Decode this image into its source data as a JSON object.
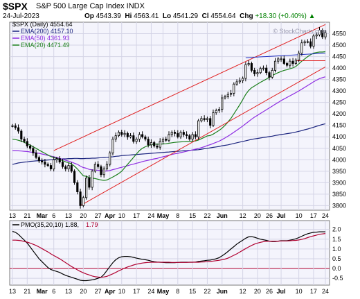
{
  "header": {
    "symbol": "$SPX",
    "description": "S&P 500 Large Cap Index  INDX",
    "date": "24-Jul-2023",
    "open_label": "Op",
    "open": "4543.39",
    "high_label": "Hi",
    "high": "4563.41",
    "low_label": "Lo",
    "low": "4541.29",
    "close_label": "Cl",
    "close": "4554.64",
    "chg_label": "Chg",
    "chg": "+18.30 (+0.40%)",
    "chg_arrow": "▲"
  },
  "watermark": "© StockCharts.com",
  "legend": [
    {
      "text": "$SPX (Daily) 4554.64",
      "color": "#000000"
    },
    {
      "text": "EMA(200) 4157.10",
      "color": "#1a237e"
    },
    {
      "text": "EMA(50) 4361.93",
      "color": "#8e2de2"
    },
    {
      "text": "EMA(20) 4471.49",
      "color": "#1b7f1b"
    }
  ],
  "pmo_legend": {
    "name": "PMO(35,20,10)",
    "v1": "1.88",
    "v2": "1.79",
    "color1": "#000000",
    "color2": "#b00030"
  },
  "chart_data": [
    {
      "type": "candlestick",
      "title": "$SPX (Daily)",
      "y_axis_side": "right",
      "ylim": [
        3780,
        4600
      ],
      "yticks": [
        3800,
        3850,
        3900,
        3950,
        4000,
        4050,
        4100,
        4150,
        4200,
        4250,
        4300,
        4350,
        4400,
        4450,
        4500,
        4550
      ],
      "x_ticks": [
        "13",
        "21",
        "Mar",
        "6",
        "13",
        "20",
        "27",
        "Apr",
        "10",
        "17",
        "24",
        "May",
        "8",
        "15",
        "22",
        "Jun",
        "12",
        "20",
        "26",
        "Jul",
        "10",
        "17",
        "24"
      ],
      "x_tick_idx": [
        0,
        5,
        10,
        14,
        19,
        24,
        29,
        33,
        37,
        42,
        47,
        51,
        56,
        61,
        66,
        71,
        78,
        83,
        87,
        91,
        97,
        102,
        106
      ],
      "bold_ticks": [
        "Mar",
        "Apr",
        "May",
        "Jun",
        "Jul"
      ],
      "close": [
        4148,
        4140,
        4125,
        4090,
        4080,
        4060,
        4050,
        4030,
        4010,
        3995,
        3990,
        3980,
        3975,
        3960,
        4000,
        4005,
        3990,
        3970,
        3960,
        3975,
        3950,
        3900,
        3860,
        3800,
        3835,
        3920,
        3880,
        3950,
        3980,
        3970,
        3935,
        3960,
        3980,
        4030,
        4090,
        4105,
        4120,
        4110,
        4115,
        4100,
        4105,
        4080,
        4090,
        4110,
        4100,
        4090,
        4065,
        4075,
        4060,
        4055,
        4080,
        4090,
        4085,
        4110,
        4120,
        4115,
        4100,
        4120,
        4110,
        4105,
        4090,
        4110,
        4100,
        4170,
        4180,
        4175,
        4180,
        4150,
        4205,
        4215,
        4220,
        4270,
        4275,
        4285,
        4290,
        4330,
        4340,
        4345,
        4355,
        4415,
        4420,
        4390,
        4375,
        4380,
        4398,
        4400,
        4380,
        4360,
        4390,
        4430,
        4440,
        4440,
        4420,
        4412,
        4430,
        4420,
        4435,
        4465,
        4510,
        4515,
        4515,
        4495,
        4540,
        4545,
        4565,
        4536,
        4555
      ],
      "series": [
        {
          "name": "EMA(200)",
          "color": "#1a237e",
          "values": [
            3980,
            3983,
            3986,
            3988,
            3990,
            3991,
            3993,
            3994,
            3995,
            3996,
            3997,
            3998,
            3999,
            4000,
            4001,
            4002,
            4003,
            4004,
            4004,
            4005,
            4005,
            4006,
            4006,
            4005,
            4005,
            4006,
            4006,
            4007,
            4007,
            4008,
            4009,
            4010,
            4011,
            4012,
            4013,
            4015,
            4016,
            4018,
            4019,
            4020,
            4021,
            4022,
            4023,
            4024,
            4025,
            4026,
            4027,
            4028,
            4029,
            4030,
            4031,
            4032,
            4033,
            4034,
            4035,
            4036,
            4037,
            4038,
            4039,
            4040,
            4041,
            4042,
            4043,
            4044,
            4046,
            4048,
            4050,
            4052,
            4054,
            4056,
            4058,
            4061,
            4063,
            4065,
            4068,
            4071,
            4074,
            4077,
            4080,
            4083,
            4086,
            4089,
            4091,
            4093,
            4095,
            4097,
            4099,
            4101,
            4103,
            4106,
            4108,
            4110,
            4112,
            4114,
            4116,
            4118,
            4121,
            4124,
            4127,
            4131,
            4134,
            4138,
            4142,
            4146,
            4150,
            4154,
            4157.1
          ]
        },
        {
          "name": "EMA(50)",
          "color": "#8e2de2",
          "values": [
            4040,
            4040,
            4039,
            4038,
            4037,
            4036,
            4034,
            4032,
            4030,
            4028,
            4025,
            4022,
            4019,
            4016,
            4013,
            4010,
            4006,
            4002,
            3998,
            3994,
            3990,
            3985,
            3980,
            3972,
            3966,
            3963,
            3958,
            3956,
            3955,
            3954,
            3952,
            3951,
            3951,
            3953,
            3957,
            3960,
            3964,
            3967,
            3971,
            3974,
            3978,
            3981,
            3985,
            3988,
            3992,
            3995,
            3998,
            4001,
            4004,
            4006,
            4010,
            4013,
            4016,
            4020,
            4023,
            4026,
            4028,
            4031,
            4034,
            4037,
            4040,
            4043,
            4046,
            4049,
            4053,
            4057,
            4062,
            4066,
            4071,
            4076,
            4081,
            4088,
            4095,
            4103,
            4111,
            4120,
            4129,
            4138,
            4147,
            4157,
            4167,
            4177,
            4186,
            4194,
            4202,
            4210,
            4218,
            4226,
            4234,
            4242,
            4250,
            4258,
            4265,
            4272,
            4279,
            4286,
            4293,
            4300,
            4308,
            4316,
            4324,
            4332,
            4340,
            4347,
            4354,
            4358,
            4361.93
          ]
        },
        {
          "name": "EMA(20)",
          "color": "#1b7f1b",
          "values": [
            4090,
            4088,
            4085,
            4081,
            4076,
            4070,
            4064,
            4057,
            4050,
            4042,
            4035,
            4028,
            4021,
            4014,
            4010,
            4006,
            4001,
            3996,
            3991,
            3987,
            3982,
            3972,
            3960,
            3945,
            3930,
            3928,
            3922,
            3920,
            3918,
            3915,
            3912,
            3910,
            3912,
            3918,
            3925,
            3932,
            3940,
            3950,
            3965,
            3980,
            3995,
            4010,
            4025,
            4040,
            4050,
            4057,
            4062,
            4066,
            4068,
            4068,
            4068,
            4069,
            4070,
            4072,
            4074,
            4076,
            4077,
            4078,
            4079,
            4080,
            4080,
            4081,
            4082,
            4086,
            4092,
            4098,
            4104,
            4106,
            4112,
            4120,
            4128,
            4138,
            4150,
            4165,
            4180,
            4200,
            4220,
            4240,
            4262,
            4285,
            4302,
            4314,
            4322,
            4330,
            4338,
            4345,
            4352,
            4360,
            4367,
            4374,
            4380,
            4385,
            4390,
            4393,
            4397,
            4401,
            4407,
            4418,
            4430,
            4440,
            4450,
            4458,
            4465,
            4468,
            4470,
            4470,
            4471.49
          ]
        }
      ],
      "trendlines": [
        {
          "name": "upper-channel",
          "color": "#e02020",
          "from": [
            14,
            4040
          ],
          "to": [
            106,
            4590
          ]
        },
        {
          "name": "lower-channel",
          "color": "#e02020",
          "from": [
            23,
            3800
          ],
          "to": [
            106,
            4405
          ]
        },
        {
          "name": "horizontal-support",
          "color": "#e02020",
          "from": [
            96,
            4432
          ],
          "to": [
            106,
            4432
          ]
        },
        {
          "name": "resistance",
          "color": "#2030c0",
          "from": [
            79,
            4445
          ],
          "to": [
            106,
            4465
          ]
        }
      ]
    },
    {
      "type": "line",
      "title": "PMO(35,20,10)",
      "y_axis_side": "right",
      "ylim": [
        -0.85,
        2.45
      ],
      "yticks": [
        -0.5,
        0.0,
        0.5,
        1.0,
        1.5,
        2.0
      ],
      "ytick_labels": [
        "-0.5",
        "0.0",
        "0.5",
        "1.0",
        "1.5",
        "2.0"
      ],
      "zero_line_color": "#b00030",
      "series": [
        {
          "name": "PMO",
          "color": "#000000",
          "values": [
            1.9,
            1.85,
            1.75,
            1.6,
            1.45,
            1.3,
            1.1,
            0.9,
            0.7,
            0.5,
            0.35,
            0.2,
            0.05,
            -0.05,
            -0.1,
            -0.15,
            -0.2,
            -0.28,
            -0.35,
            -0.4,
            -0.45,
            -0.5,
            -0.55,
            -0.6,
            -0.62,
            -0.62,
            -0.6,
            -0.58,
            -0.55,
            -0.5,
            -0.45,
            -0.3,
            -0.1,
            0.1,
            0.3,
            0.45,
            0.55,
            0.6,
            0.62,
            0.62,
            0.6,
            0.57,
            0.53,
            0.5,
            0.47,
            0.45,
            0.42,
            0.38,
            0.35,
            0.33,
            0.32,
            0.31,
            0.3,
            0.3,
            0.3,
            0.3,
            0.31,
            0.32,
            0.32,
            0.32,
            0.32,
            0.32,
            0.33,
            0.36,
            0.38,
            0.4,
            0.42,
            0.43,
            0.46,
            0.5,
            0.55,
            0.65,
            0.75,
            0.87,
            1.0,
            1.12,
            1.25,
            1.35,
            1.45,
            1.55,
            1.62,
            1.63,
            1.6,
            1.55,
            1.5,
            1.47,
            1.44,
            1.4,
            1.38,
            1.38,
            1.4,
            1.42,
            1.42,
            1.42,
            1.45,
            1.48,
            1.52,
            1.58,
            1.65,
            1.72,
            1.78,
            1.82,
            1.85,
            1.86,
            1.88,
            1.88,
            1.88
          ]
        },
        {
          "name": "Signal",
          "color": "#b00030",
          "values": [
            1.45,
            1.45,
            1.44,
            1.42,
            1.38,
            1.35,
            1.3,
            1.24,
            1.18,
            1.1,
            1.02,
            0.93,
            0.85,
            0.75,
            0.66,
            0.58,
            0.5,
            0.4,
            0.3,
            0.2,
            0.1,
            0.02,
            -0.07,
            -0.15,
            -0.22,
            -0.28,
            -0.33,
            -0.38,
            -0.42,
            -0.44,
            -0.45,
            -0.43,
            -0.4,
            -0.34,
            -0.27,
            -0.2,
            -0.12,
            -0.05,
            0.02,
            0.08,
            0.13,
            0.18,
            0.22,
            0.25,
            0.28,
            0.3,
            0.31,
            0.32,
            0.32,
            0.32,
            0.32,
            0.32,
            0.32,
            0.32,
            0.31,
            0.31,
            0.31,
            0.31,
            0.31,
            0.31,
            0.32,
            0.32,
            0.32,
            0.32,
            0.33,
            0.34,
            0.35,
            0.36,
            0.38,
            0.4,
            0.42,
            0.45,
            0.48,
            0.53,
            0.6,
            0.68,
            0.75,
            0.84,
            0.93,
            1.02,
            1.1,
            1.18,
            1.25,
            1.3,
            1.34,
            1.37,
            1.39,
            1.4,
            1.4,
            1.4,
            1.4,
            1.41,
            1.41,
            1.41,
            1.42,
            1.43,
            1.44,
            1.46,
            1.49,
            1.53,
            1.58,
            1.63,
            1.67,
            1.71,
            1.75,
            1.77,
            1.79
          ]
        }
      ]
    }
  ]
}
